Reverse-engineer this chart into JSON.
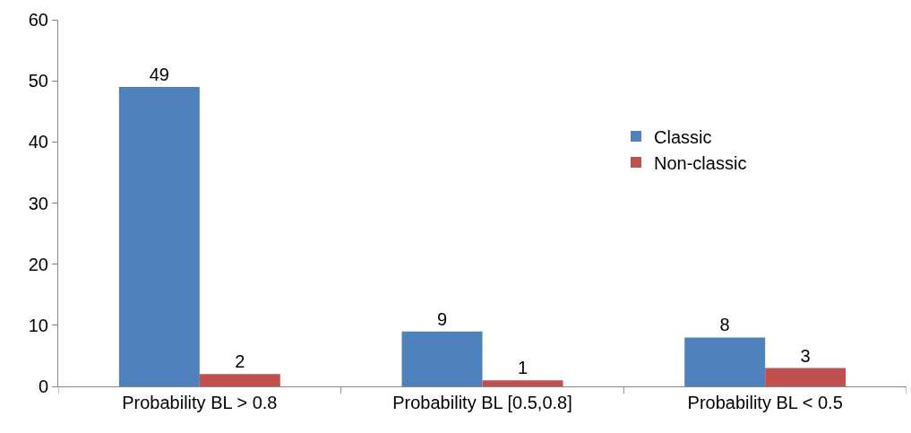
{
  "chart_data": {
    "type": "bar",
    "categories": [
      "Probability BL > 0.8",
      "Probability BL [0.5,0.8]",
      "Probability BL < 0.5"
    ],
    "series": [
      {
        "name": "Classic",
        "color": "#4f81bd",
        "values": [
          49,
          9,
          8
        ]
      },
      {
        "name": "Non-classic",
        "color": "#c0504d",
        "values": [
          2,
          1,
          3
        ]
      }
    ],
    "ylim": [
      0,
      60
    ],
    "yticks": [
      0,
      10,
      20,
      30,
      40,
      50,
      60
    ],
    "grid": false,
    "legend": "right",
    "data_labels": true
  }
}
